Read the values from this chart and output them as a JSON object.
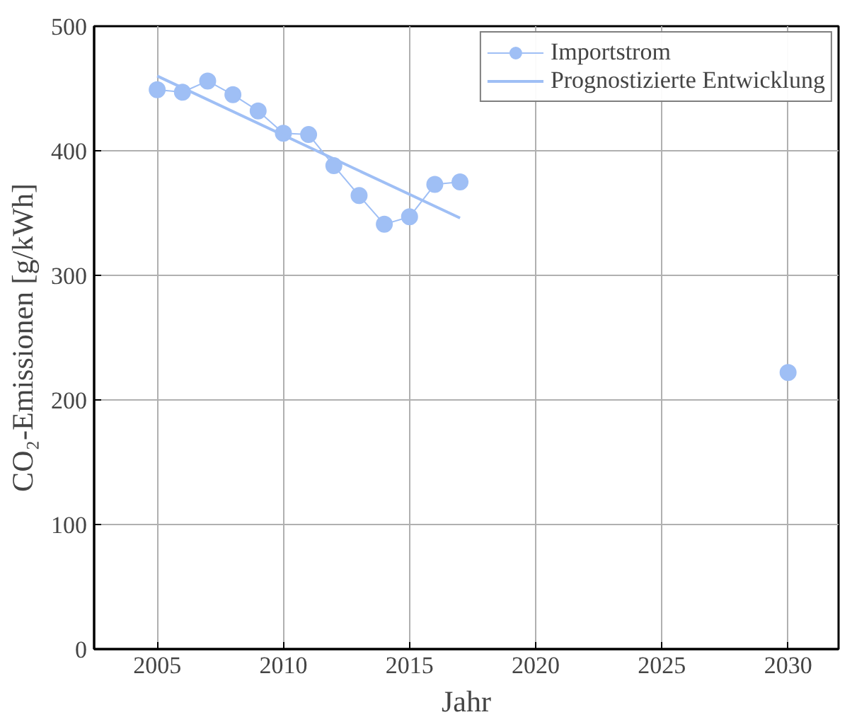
{
  "chart_data": {
    "type": "line",
    "xlabel": "Jahr",
    "ylabel": "CO₂-Emissionen [g/kWh]",
    "xlim": [
      2002.5,
      2032
    ],
    "ylim": [
      0,
      500
    ],
    "xticks": [
      2005,
      2010,
      2015,
      2020,
      2025,
      2030
    ],
    "yticks": [
      0,
      100,
      200,
      300,
      400,
      500
    ],
    "grid": true,
    "legend": "top right",
    "series": [
      {
        "name": "Importstrom",
        "color": "#9fbff5",
        "marker": "circle",
        "x": [
          2005,
          2006,
          2007,
          2008,
          2009,
          2010,
          2011,
          2012,
          2013,
          2014,
          2015,
          2016,
          2017
        ],
        "values": [
          449,
          447,
          456,
          445,
          432,
          414,
          413,
          388,
          364,
          341,
          347,
          373,
          375
        ]
      },
      {
        "name": "Prognostizierte Entwicklung",
        "color": "#9fbff5",
        "marker": "none",
        "x": [
          2005,
          2017
        ],
        "values": [
          460,
          346
        ]
      },
      {
        "color": "#9fbff5",
        "type": "scatter",
        "x": [
          2030
        ],
        "values": [
          222
        ]
      }
    ]
  }
}
